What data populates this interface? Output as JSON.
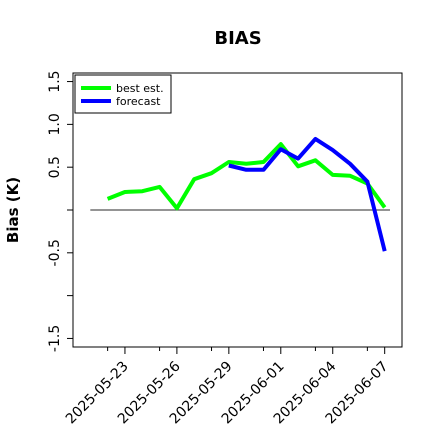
{
  "chart_data": {
    "type": "line",
    "title": "BIAS",
    "xlabel": "",
    "ylabel": "Bias (K)",
    "xlim": [
      "2025-05-20",
      "2025-06-08"
    ],
    "ylim": [
      -1.6,
      1.6
    ],
    "y_ticks": [
      -1.5,
      -0.5,
      0.5,
      1.0,
      1.5
    ],
    "y_tick_labels": [
      "-1.5",
      "-0.5",
      "0.5",
      "1.0",
      "1.5"
    ],
    "x_ticks": [
      "2025-05-23",
      "2025-05-26",
      "2025-05-29",
      "2025-06-01",
      "2025-06-04",
      "2025-06-07"
    ],
    "x_tick_labels": [
      "2025-05-23",
      "2025-05-26",
      "2025-05-29",
      "2025-06-01",
      "2025-06-04",
      "2025-06-07"
    ],
    "x_minor_ticks": [
      "2025-05-22",
      "2025-05-25",
      "2025-05-28",
      "2025-05-31",
      "2025-06-03",
      "2025-06-06"
    ],
    "highlighted_tick": "2025-05-29",
    "highlight_color": "#008000",
    "reference_line": 0,
    "legend": {
      "position": "top-left"
    },
    "series": [
      {
        "name": "best est.",
        "color": "#00ff00",
        "x": [
          "2025-05-22",
          "2025-05-23",
          "2025-05-24",
          "2025-05-25",
          "2025-05-26",
          "2025-05-27",
          "2025-05-28",
          "2025-05-29",
          "2025-05-30",
          "2025-05-31",
          "2025-06-01",
          "2025-06-02",
          "2025-06-03",
          "2025-06-04",
          "2025-06-05",
          "2025-06-06",
          "2025-06-07"
        ],
        "values": [
          0.13,
          0.21,
          0.22,
          0.27,
          0.02,
          0.36,
          0.43,
          0.56,
          0.54,
          0.56,
          0.77,
          0.51,
          0.58,
          0.41,
          0.4,
          0.31,
          0.03
        ]
      },
      {
        "name": "forecast",
        "color": "#0000ff",
        "x": [
          "2025-05-29",
          "2025-05-30",
          "2025-05-31",
          "2025-06-01",
          "2025-06-02",
          "2025-06-03",
          "2025-06-04",
          "2025-06-05",
          "2025-06-06",
          "2025-06-07"
        ],
        "values": [
          0.52,
          0.47,
          0.47,
          0.71,
          0.6,
          0.83,
          0.7,
          0.54,
          0.33,
          -0.48
        ]
      }
    ]
  }
}
